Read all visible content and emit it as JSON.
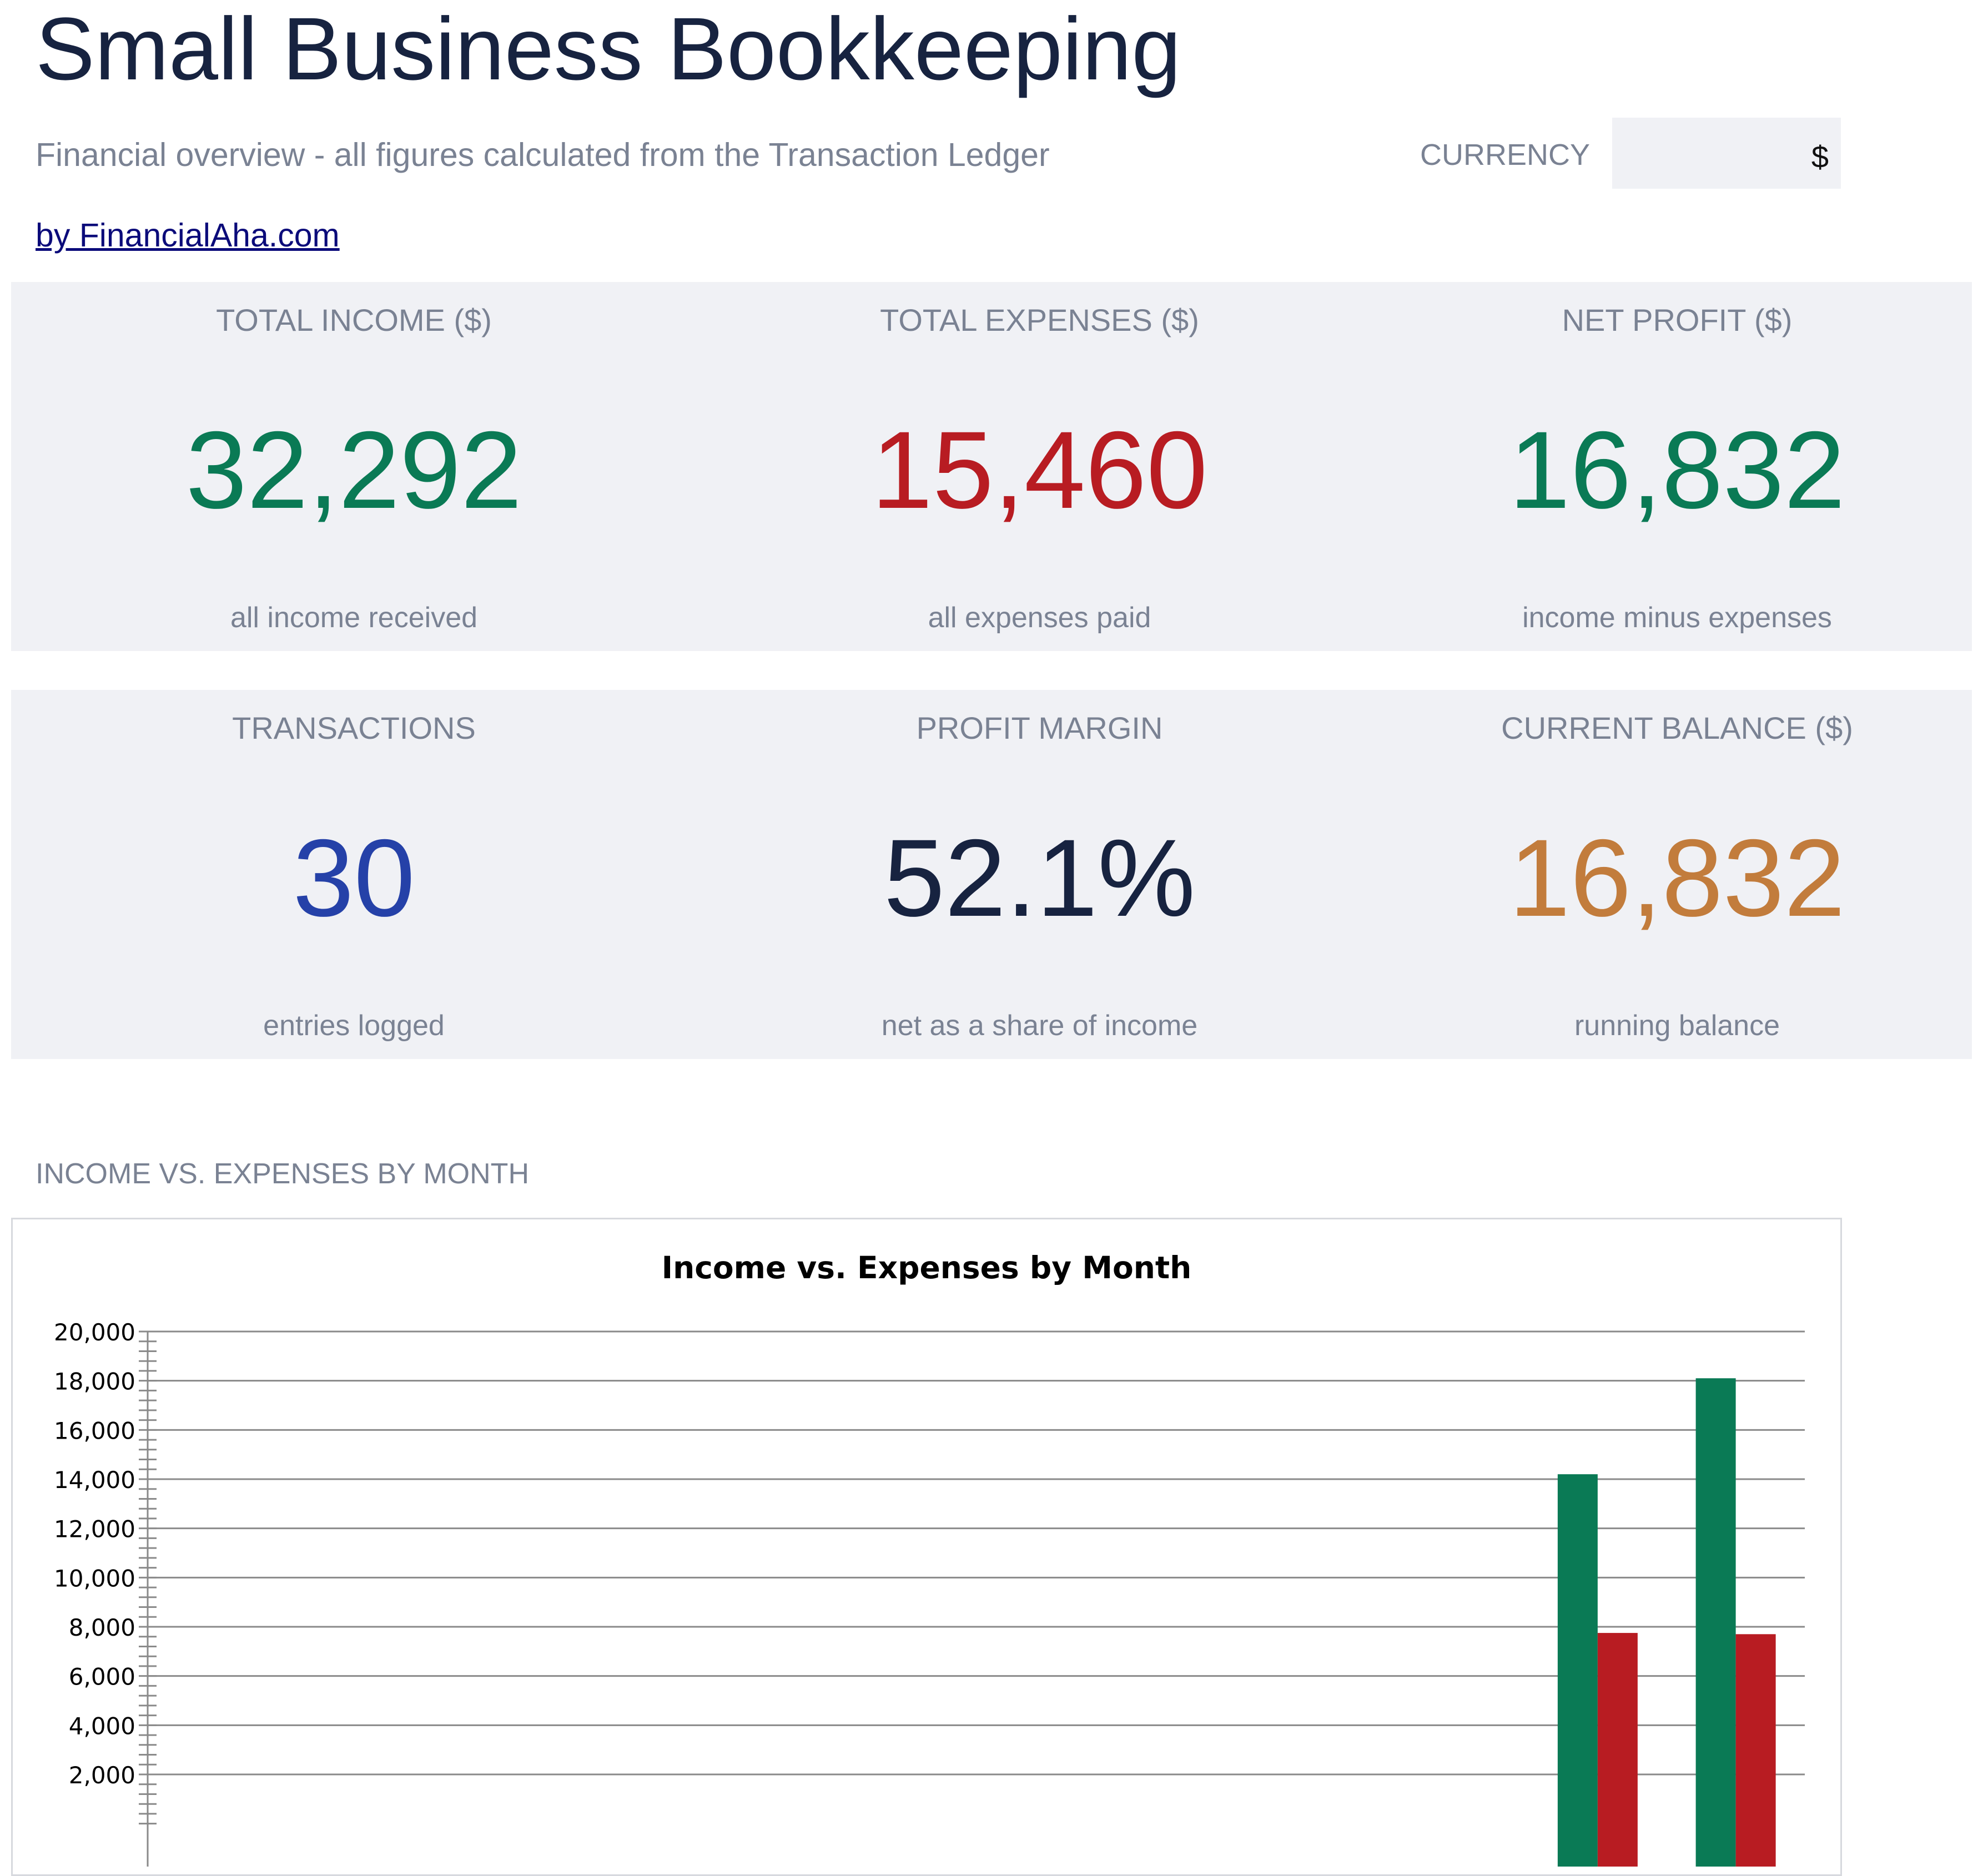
{
  "header": {
    "title": "Small Business Bookkeeping",
    "subtitle": "Financial overview - all figures calculated from the Transaction Ledger",
    "byline": "by FinancialAha.com",
    "currency_label": "CURRENCY",
    "currency_value": "$"
  },
  "kpis": [
    {
      "label": "TOTAL INCOME ($)",
      "value": "32,292",
      "caption": "all income received",
      "color": "#0a7a55"
    },
    {
      "label": "TOTAL EXPENSES ($)",
      "value": "15,460",
      "caption": "all expenses paid",
      "color": "#b81c22"
    },
    {
      "label": "NET PROFIT ($)",
      "value": "16,832",
      "caption": "income minus expenses",
      "color": "#0a7a55"
    },
    {
      "label": "TRANSACTIONS",
      "value": "30",
      "caption": "entries logged",
      "color": "#2541a8"
    },
    {
      "label": "PROFIT MARGIN",
      "value": "52.1%",
      "caption": "net as a share of income",
      "color": "#172340"
    },
    {
      "label": "CURRENT BALANCE ($)",
      "value": "16,832",
      "caption": "running balance",
      "color": "#c27c3c"
    }
  ],
  "section_heading": "INCOME VS. EXPENSES BY MONTH",
  "chart_data": {
    "type": "bar",
    "title": "Income vs. Expenses by Month",
    "xlabel": "",
    "ylabel": "",
    "ylim": [
      0,
      20000
    ],
    "y_ticks": [
      2000,
      4000,
      6000,
      8000,
      10000,
      12000,
      14000,
      16000,
      18000,
      20000
    ],
    "y_tick_labels": [
      "2,000",
      "4,000",
      "6,000",
      "8,000",
      "10,000",
      "12,000",
      "14,000",
      "16,000",
      "18,000",
      "20,000"
    ],
    "grid": true,
    "category_count": 12,
    "series": [
      {
        "values": [
          0,
          0,
          0,
          0,
          0,
          0,
          0,
          0,
          0,
          0,
          14200,
          18100
        ],
        "color": "#0a7a55"
      },
      {
        "values": [
          0,
          0,
          0,
          0,
          0,
          0,
          0,
          0,
          0,
          0,
          7750,
          7700
        ],
        "color": "#b81c22"
      }
    ]
  }
}
